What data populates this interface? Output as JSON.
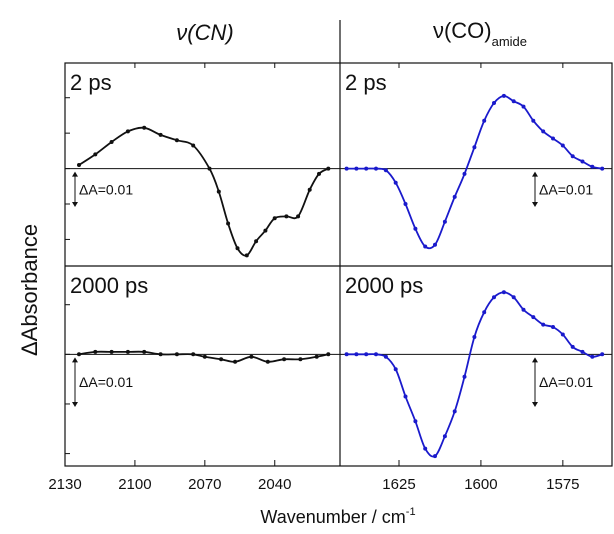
{
  "chart_data": {
    "type": "line",
    "ylabel": "ΔAbsorbance",
    "xlabel": "Wavenumber / cm",
    "xlabel_superscript": "-1",
    "columns": [
      {
        "title": "ν(CN)",
        "title_subscript": "",
        "xlim": [
          2130,
          2012
        ],
        "xticks": [
          2130,
          2100,
          2070,
          2040
        ],
        "color": "#111111"
      },
      {
        "title": "ν(CO)",
        "title_subscript": "amide",
        "xlim": [
          1643,
          1560
        ],
        "xticks": [
          1625,
          1600,
          1575
        ],
        "color": "#1a1acc"
      }
    ],
    "scale_bar": {
      "label": "ΔA=0.01",
      "value": 0.01
    },
    "ylim_top": [
      -0.0275,
      0.0298
    ],
    "ylim_bottom": [
      -0.0225,
      0.0178
    ],
    "panels": [
      {
        "time": "2 ps",
        "column": 0,
        "row": 0,
        "points": [
          [
            2124,
            0.001
          ],
          [
            2117,
            0.004
          ],
          [
            2110,
            0.0075
          ],
          [
            2103,
            0.0105
          ],
          [
            2096,
            0.0115
          ],
          [
            2089,
            0.0095
          ],
          [
            2082,
            0.008
          ],
          [
            2075,
            0.0065
          ],
          [
            2068,
            0.0
          ],
          [
            2064,
            -0.0065
          ],
          [
            2060,
            -0.0155
          ],
          [
            2056,
            -0.0225
          ],
          [
            2052,
            -0.0245
          ],
          [
            2048,
            -0.0205
          ],
          [
            2044,
            -0.0175
          ],
          [
            2040,
            -0.014
          ],
          [
            2035,
            -0.0135
          ],
          [
            2030,
            -0.0135
          ],
          [
            2025,
            -0.006
          ],
          [
            2021,
            -0.0015
          ],
          [
            2017,
            0.0
          ]
        ]
      },
      {
        "time": "2 ps",
        "column": 1,
        "row": 0,
        "points": [
          [
            1641,
            0.0
          ],
          [
            1638,
            0.0
          ],
          [
            1635,
            0.0
          ],
          [
            1632,
            0.0
          ],
          [
            1629,
            -0.0005
          ],
          [
            1626,
            -0.004
          ],
          [
            1623,
            -0.01
          ],
          [
            1620,
            -0.017
          ],
          [
            1617,
            -0.022
          ],
          [
            1614,
            -0.0215
          ],
          [
            1611,
            -0.015
          ],
          [
            1608,
            -0.008
          ],
          [
            1605,
            -0.0015
          ],
          [
            1602,
            0.006
          ],
          [
            1599,
            0.0135
          ],
          [
            1596,
            0.0185
          ],
          [
            1593,
            0.0205
          ],
          [
            1590,
            0.019
          ],
          [
            1587,
            0.0175
          ],
          [
            1584,
            0.0135
          ],
          [
            1581,
            0.0105
          ],
          [
            1578,
            0.0085
          ],
          [
            1575,
            0.0065
          ],
          [
            1572,
            0.0035
          ],
          [
            1569,
            0.002
          ],
          [
            1566,
            0.0005
          ],
          [
            1563,
            0.0
          ]
        ]
      },
      {
        "time": "2000 ps",
        "column": 0,
        "row": 1,
        "points": [
          [
            2124,
            0.0
          ],
          [
            2117,
            0.0005
          ],
          [
            2110,
            0.0005
          ],
          [
            2103,
            0.0005
          ],
          [
            2096,
            0.0005
          ],
          [
            2089,
            0.0
          ],
          [
            2082,
            0.0
          ],
          [
            2075,
            0.0
          ],
          [
            2070,
            -0.0005
          ],
          [
            2063,
            -0.001
          ],
          [
            2057,
            -0.0015
          ],
          [
            2050,
            -0.0005
          ],
          [
            2043,
            -0.0015
          ],
          [
            2036,
            -0.001
          ],
          [
            2029,
            -0.001
          ],
          [
            2022,
            -0.0005
          ],
          [
            2017,
            0.0
          ]
        ]
      },
      {
        "time": "2000 ps",
        "column": 1,
        "row": 1,
        "points": [
          [
            1641,
            0.0
          ],
          [
            1638,
            0.0
          ],
          [
            1635,
            0.0
          ],
          [
            1632,
            0.0
          ],
          [
            1629,
            -0.0005
          ],
          [
            1626,
            -0.003
          ],
          [
            1623,
            -0.0085
          ],
          [
            1620,
            -0.0135
          ],
          [
            1617,
            -0.019
          ],
          [
            1614,
            -0.0205
          ],
          [
            1611,
            -0.0165
          ],
          [
            1608,
            -0.0115
          ],
          [
            1605,
            -0.0045
          ],
          [
            1602,
            0.0035
          ],
          [
            1599,
            0.0085
          ],
          [
            1596,
            0.0115
          ],
          [
            1593,
            0.0125
          ],
          [
            1590,
            0.0115
          ],
          [
            1587,
            0.009
          ],
          [
            1584,
            0.0075
          ],
          [
            1581,
            0.006
          ],
          [
            1578,
            0.0055
          ],
          [
            1575,
            0.004
          ],
          [
            1572,
            0.0015
          ],
          [
            1569,
            0.0005
          ],
          [
            1566,
            -0.0005
          ],
          [
            1563,
            0.0
          ]
        ]
      }
    ]
  }
}
